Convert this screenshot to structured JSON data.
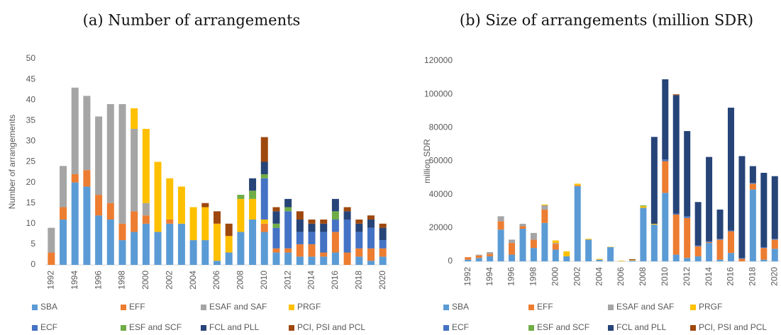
{
  "chart_data": [
    {
      "type": "bar",
      "stacked": true,
      "title": "(a) Number of arrangements",
      "ylabel": "Number of arrangements",
      "categories": [
        "1992",
        null,
        "1994",
        null,
        "1996",
        null,
        "1998",
        null,
        "2000",
        null,
        "2002",
        null,
        "2004",
        null,
        "2006",
        null,
        "2008",
        null,
        "2010",
        null,
        "2012",
        null,
        "2014",
        null,
        "2016",
        null,
        "2018",
        null,
        "2020"
      ],
      "ylim": [
        0,
        50
      ],
      "yticks": [
        0,
        5,
        10,
        15,
        20,
        25,
        30,
        35,
        40,
        45,
        50
      ],
      "series": [
        {
          "name": "SBA",
          "color": "#5b9bd5",
          "values": [
            0,
            11,
            20,
            19,
            12,
            11,
            6,
            8,
            10,
            8,
            10,
            10,
            6,
            6,
            1,
            3,
            8,
            11,
            8,
            3,
            3,
            2,
            2,
            2,
            3,
            0,
            2,
            1,
            2
          ]
        },
        {
          "name": "EFF",
          "color": "#ed7d31",
          "values": [
            3,
            3,
            2,
            4,
            5,
            4,
            4,
            5,
            2,
            0,
            1,
            0,
            0,
            0,
            0,
            0,
            0,
            0,
            2,
            1,
            1,
            3,
            3,
            1,
            5,
            3,
            2,
            3,
            2
          ]
        },
        {
          "name": "ESAF and SAF",
          "color": "#a5a5a5",
          "values": [
            6,
            10,
            21,
            18,
            19,
            24,
            29,
            20,
            3,
            0,
            0,
            0,
            0,
            0,
            0,
            0,
            0,
            0,
            0,
            0,
            0,
            0,
            0,
            0,
            0,
            0,
            0,
            0,
            0
          ]
        },
        {
          "name": "PRGF",
          "color": "#ffc000",
          "values": [
            0,
            0,
            0,
            0,
            0,
            0,
            0,
            5,
            18,
            17,
            10,
            9,
            8,
            8,
            9,
            4,
            8,
            5,
            1,
            0,
            0,
            0,
            0,
            0,
            0,
            0,
            0,
            0,
            0
          ]
        },
        {
          "name": "ECF",
          "color": "#4472c4",
          "values": [
            0,
            0,
            0,
            0,
            0,
            0,
            0,
            0,
            0,
            0,
            0,
            0,
            0,
            0,
            0,
            0,
            0,
            0,
            10,
            5,
            9,
            3,
            3,
            5,
            3,
            8,
            4,
            5,
            2
          ]
        },
        {
          "name": "ESF and SCF",
          "color": "#70ad47",
          "values": [
            0,
            0,
            0,
            0,
            0,
            0,
            0,
            0,
            0,
            0,
            0,
            0,
            0,
            0,
            0,
            0,
            1,
            2,
            1,
            1,
            1,
            0,
            0,
            0,
            2,
            0,
            0,
            0,
            0
          ]
        },
        {
          "name": "FCL and PLL",
          "color": "#264478",
          "values": [
            0,
            0,
            0,
            0,
            0,
            0,
            0,
            0,
            0,
            0,
            0,
            0,
            0,
            0,
            0,
            0,
            0,
            3,
            3,
            3,
            2,
            3,
            2,
            2,
            3,
            2,
            2,
            2,
            3
          ]
        },
        {
          "name": "PCI, PSI and PCL",
          "color": "#9e480e",
          "values": [
            0,
            0,
            0,
            0,
            0,
            0,
            0,
            0,
            0,
            0,
            0,
            0,
            0,
            1,
            3,
            3,
            0,
            0,
            6,
            1,
            0,
            2,
            1,
            1,
            0,
            1,
            1,
            1,
            1
          ]
        }
      ]
    },
    {
      "type": "bar",
      "stacked": true,
      "title": "(b) Size of arrangements (million SDR)",
      "ylabel": "million SDR",
      "categories": [
        "1992",
        null,
        "1994",
        null,
        "1996",
        null,
        "1998",
        null,
        "2000",
        null,
        "2002",
        null,
        "2004",
        null,
        "2006",
        null,
        "2008",
        null,
        "2010",
        null,
        "2012",
        null,
        "2014",
        null,
        "2016",
        null,
        "2018",
        null,
        "2020"
      ],
      "ylim": [
        0,
        120000
      ],
      "yticks": [
        0,
        20000,
        40000,
        60000,
        80000,
        100000,
        120000
      ],
      "series": [
        {
          "name": "SBA",
          "color": "#5b9bd5",
          "values": [
            1000,
            2000,
            3000,
            19000,
            4000,
            19500,
            8000,
            23000,
            7000,
            3000,
            45000,
            13000,
            1000,
            8500,
            100,
            500,
            32000,
            22000,
            41000,
            4000,
            2000,
            3000,
            11000,
            1000,
            5000,
            0,
            43000,
            1000,
            7500
          ]
        },
        {
          "name": "EFF",
          "color": "#ed7d31",
          "values": [
            1500,
            1500,
            1500,
            5000,
            7000,
            1500,
            5000,
            8000,
            3500,
            0,
            500,
            0,
            0,
            0,
            0,
            0,
            0,
            0,
            19000,
            24000,
            24000,
            6000,
            500,
            12000,
            13000,
            1500,
            3500,
            7000,
            5500
          ]
        },
        {
          "name": "ESAF and SAF",
          "color": "#a5a5a5",
          "values": [
            0,
            500,
            1000,
            3000,
            2000,
            1500,
            4000,
            2500,
            500,
            0,
            0,
            0,
            0,
            0,
            0,
            0,
            0,
            0,
            0,
            0,
            0,
            0,
            0,
            0,
            0,
            0,
            0,
            0,
            0
          ]
        },
        {
          "name": "PRGF",
          "color": "#ffc000",
          "values": [
            0,
            0,
            0,
            0,
            0,
            0,
            0,
            500,
            1500,
            3000,
            1000,
            500,
            500,
            200,
            300,
            300,
            1000,
            500,
            0,
            0,
            0,
            0,
            0,
            0,
            0,
            0,
            0,
            0,
            0
          ]
        },
        {
          "name": "ECF",
          "color": "#4472c4",
          "values": [
            0,
            0,
            0,
            0,
            0,
            0,
            0,
            0,
            0,
            0,
            0,
            0,
            0,
            0,
            0,
            0,
            0,
            0,
            1000,
            500,
            1000,
            500,
            500,
            500,
            500,
            500,
            500,
            500,
            500
          ]
        },
        {
          "name": "ESF and SCF",
          "color": "#70ad47",
          "values": [
            0,
            0,
            0,
            0,
            0,
            0,
            0,
            0,
            0,
            0,
            0,
            0,
            0,
            0,
            0,
            0,
            500,
            0,
            0,
            0,
            0,
            0,
            0,
            0,
            0,
            0,
            0,
            0,
            0
          ]
        },
        {
          "name": "FCL and PLL",
          "color": "#264478",
          "values": [
            0,
            0,
            0,
            0,
            0,
            0,
            0,
            0,
            0,
            0,
            0,
            0,
            0,
            0,
            0,
            0,
            0,
            52000,
            48000,
            71000,
            51000,
            26000,
            50500,
            17500,
            73500,
            61000,
            10000,
            44500,
            37500
          ]
        },
        {
          "name": "PCI, PSI and PCL",
          "color": "#9e480e",
          "values": [
            0,
            0,
            0,
            0,
            0,
            0,
            0,
            0,
            0,
            0,
            0,
            0,
            0,
            0,
            0,
            500,
            0,
            0,
            0,
            500,
            0,
            0,
            0,
            0,
            0,
            0,
            0,
            0,
            0
          ]
        }
      ]
    }
  ]
}
